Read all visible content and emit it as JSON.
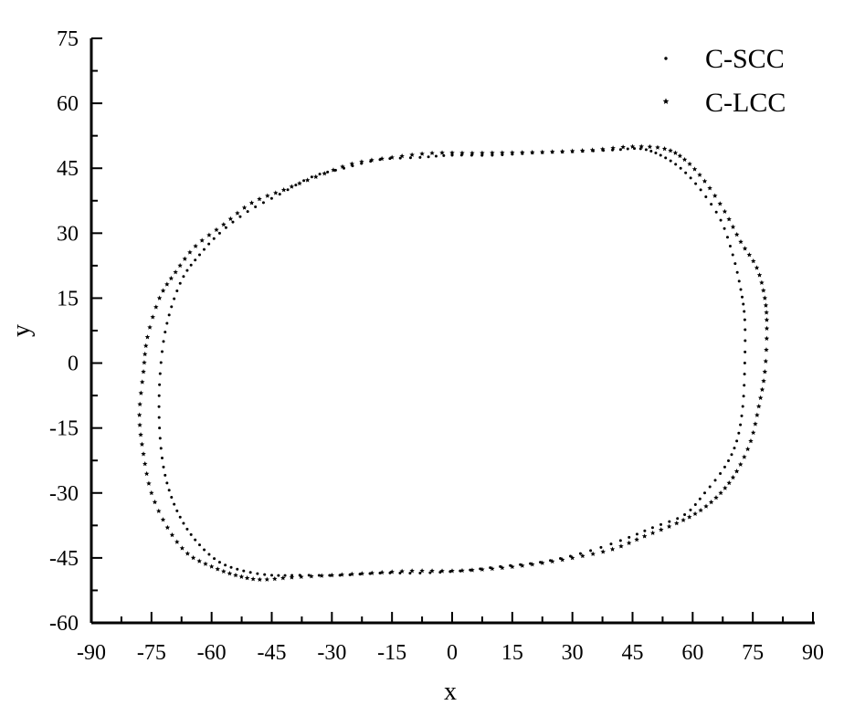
{
  "chart_data": {
    "type": "scatter",
    "title": "",
    "xlabel": "x",
    "ylabel": "y",
    "xlim": [
      -90,
      90
    ],
    "ylim": [
      -60,
      75
    ],
    "xticks": [
      "-90",
      "-75",
      "-60",
      "-45",
      "-30",
      "-15",
      "0",
      "15",
      "30",
      "45",
      "60",
      "75",
      "90"
    ],
    "yticks": [
      "-60",
      "-45",
      "-30",
      "-15",
      "0",
      "15",
      "30",
      "45",
      "60",
      "75"
    ],
    "grid": false,
    "legend_position": "top-right",
    "series": [
      {
        "name": "C-SCC",
        "marker": "small-dot",
        "color": "#000000",
        "points": [
          [
            -73,
            -15
          ],
          [
            -73,
            -5
          ],
          [
            -72,
            5
          ],
          [
            -70,
            13
          ],
          [
            -67,
            20
          ],
          [
            -63,
            25
          ],
          [
            -58,
            30
          ],
          [
            -51,
            35
          ],
          [
            -43,
            39
          ],
          [
            -35,
            43
          ],
          [
            -27,
            45
          ],
          [
            -18,
            47
          ],
          [
            -8,
            47.5
          ],
          [
            0,
            48
          ],
          [
            10,
            48
          ],
          [
            20,
            48.5
          ],
          [
            30,
            48.8
          ],
          [
            40,
            49.2
          ],
          [
            47,
            49.5
          ],
          [
            52,
            48
          ],
          [
            57,
            45
          ],
          [
            62,
            40
          ],
          [
            67,
            33
          ],
          [
            70,
            25
          ],
          [
            72,
            17
          ],
          [
            73,
            10
          ],
          [
            73,
            0
          ],
          [
            72.5,
            -10
          ],
          [
            71,
            -18
          ],
          [
            68,
            -24
          ],
          [
            63,
            -30
          ],
          [
            58,
            -35
          ],
          [
            50,
            -38
          ],
          [
            42,
            -41
          ],
          [
            32,
            -44
          ],
          [
            22,
            -46
          ],
          [
            12,
            -47
          ],
          [
            2,
            -48
          ],
          [
            -8,
            -48.5
          ],
          [
            -18,
            -48.5
          ],
          [
            -28,
            -49
          ],
          [
            -38,
            -49
          ],
          [
            -45,
            -49
          ],
          [
            -52,
            -48
          ],
          [
            -58,
            -46
          ],
          [
            -63,
            -42
          ],
          [
            -67,
            -37
          ],
          [
            -70,
            -31
          ],
          [
            -72,
            -24
          ]
        ]
      },
      {
        "name": "C-LCC",
        "marker": "star",
        "color": "#000000",
        "points": [
          [
            -78,
            -12
          ],
          [
            -77,
            -2
          ],
          [
            -76,
            6
          ],
          [
            -73,
            15
          ],
          [
            -69,
            21
          ],
          [
            -64,
            27
          ],
          [
            -57,
            32
          ],
          [
            -50,
            37
          ],
          [
            -42,
            40
          ],
          [
            -34,
            43
          ],
          [
            -25,
            46
          ],
          [
            -15,
            47.5
          ],
          [
            -5,
            48.5
          ],
          [
            5,
            48.5
          ],
          [
            15,
            48.6
          ],
          [
            25,
            48.8
          ],
          [
            35,
            49.2
          ],
          [
            45,
            50
          ],
          [
            53,
            49.5
          ],
          [
            58,
            47
          ],
          [
            63,
            42
          ],
          [
            68,
            35
          ],
          [
            72,
            28
          ],
          [
            76,
            22
          ],
          [
            78,
            15
          ],
          [
            78.5,
            8
          ],
          [
            78,
            -2
          ],
          [
            76.5,
            -10
          ],
          [
            74.5,
            -18
          ],
          [
            71,
            -25
          ],
          [
            67,
            -30
          ],
          [
            62,
            -34
          ],
          [
            56,
            -37
          ],
          [
            48,
            -40
          ],
          [
            40,
            -43
          ],
          [
            30,
            -45
          ],
          [
            20,
            -46.5
          ],
          [
            10,
            -47.5
          ],
          [
            0,
            -48
          ],
          [
            -10,
            -48
          ],
          [
            -20,
            -48.5
          ],
          [
            -30,
            -49
          ],
          [
            -40,
            -49.5
          ],
          [
            -48,
            -50
          ],
          [
            -54,
            -49
          ],
          [
            -60,
            -47
          ],
          [
            -66,
            -44
          ],
          [
            -71,
            -38
          ],
          [
            -75,
            -30
          ],
          [
            -77,
            -21
          ]
        ]
      }
    ]
  }
}
